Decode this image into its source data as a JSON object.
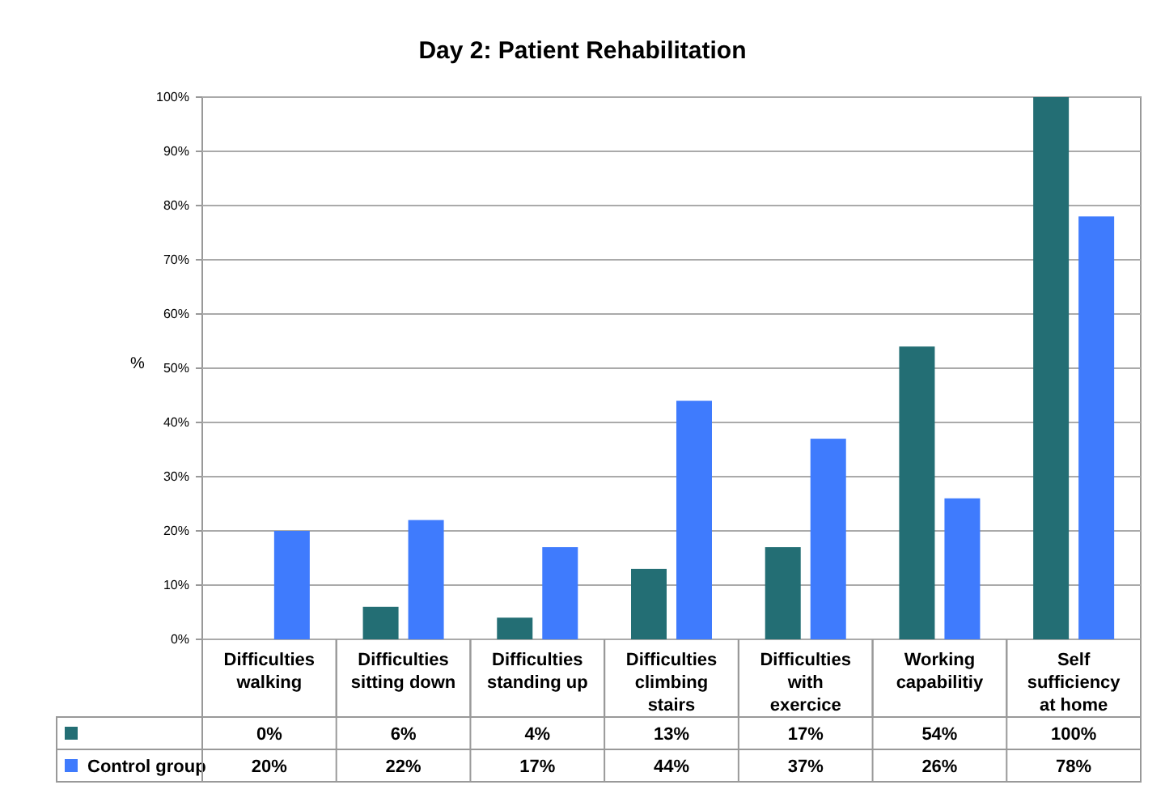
{
  "chart_data": {
    "type": "bar",
    "title": "Day 2: Patient Rehabilitation",
    "ylabel": "%",
    "categories": [
      "Difficulties walking",
      "Difficulties sitting down",
      "Difficulties standing up",
      "Difficulties climbing stairs",
      "Difficulties with exercice",
      "Working capabilitiy",
      "Self sufficiency at home"
    ],
    "series": [
      {
        "color": "#236e74",
        "values": [
          0,
          6,
          4,
          13,
          17,
          54,
          100
        ],
        "value_labels": [
          "0%",
          "6%",
          "4%",
          "13%",
          "17%",
          "54%",
          "100%"
        ]
      },
      {
        "name": "Control group",
        "color": "#3f7bfd",
        "values": [
          20,
          22,
          17,
          44,
          37,
          26,
          78
        ],
        "value_labels": [
          "20%",
          "22%",
          "17%",
          "44%",
          "37%",
          "26%",
          "78%"
        ]
      }
    ],
    "ylim": [
      0,
      100
    ],
    "yticks": [
      {
        "value": 0,
        "label": "0%"
      },
      {
        "value": 10,
        "label": "10%"
      },
      {
        "value": 20,
        "label": "20%"
      },
      {
        "value": 30,
        "label": "30%"
      },
      {
        "value": 40,
        "label": "40%"
      },
      {
        "value": 50,
        "label": "50%"
      },
      {
        "value": 60,
        "label": "60%"
      },
      {
        "value": 70,
        "label": "70%"
      },
      {
        "value": 80,
        "label": "80%"
      },
      {
        "value": 90,
        "label": "90%"
      },
      {
        "value": 100,
        "label": "100%"
      }
    ],
    "grid": "y",
    "legend": "bottom"
  }
}
